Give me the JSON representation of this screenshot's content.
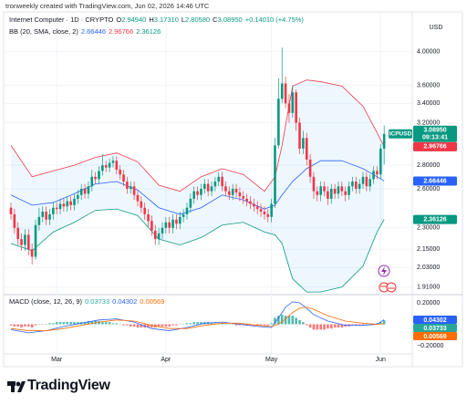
{
  "watermark": "tronweekly created with TradingView.com, Jun 02, 2026 14:46 UTC",
  "logo": "TradingView",
  "chart_data": [
    {
      "type": "candlestick",
      "symbol": "Internet Computer · 1D · CRYPTO",
      "ohlc_legend": [
        {
          "key": "O",
          "label": "2.94940"
        },
        {
          "key": "H",
          "label": "3.17310"
        },
        {
          "key": "L",
          "label": "2.80580"
        },
        {
          "key": "C",
          "label": "3.08950"
        }
      ],
      "change_label": "+0.14010 (+4.75%)",
      "currency": "USD",
      "last_price": {
        "symbol": "ICPUSD",
        "countdown": "09:13:41"
      },
      "categories": [
        null,
        null,
        null,
        null,
        null,
        null,
        null,
        null,
        null,
        null,
        null,
        null,
        null,
        "Mar",
        null,
        null,
        null,
        null,
        null,
        null,
        null,
        null,
        null,
        null,
        null,
        null,
        null,
        null,
        null,
        null,
        null,
        null,
        null,
        null,
        null,
        null,
        null,
        null,
        null,
        null,
        null,
        null,
        null,
        null,
        "Apr",
        null,
        null,
        null,
        null,
        null,
        null,
        null,
        null,
        null,
        null,
        null,
        null,
        null,
        null,
        null,
        null,
        null,
        null,
        null,
        null,
        null,
        null,
        null,
        null,
        null,
        null,
        null,
        null,
        null,
        "May",
        null,
        null,
        null,
        null,
        null,
        null,
        null,
        null,
        null,
        null,
        null,
        null,
        null,
        null,
        null,
        null,
        null,
        null,
        null,
        null,
        null,
        null,
        null,
        null,
        null,
        null,
        null,
        null,
        null,
        null,
        "Jun",
        null
      ],
      "open": [
        2.45,
        2.4,
        2.3,
        2.22,
        2.18,
        2.25,
        2.15,
        2.1,
        2.32,
        2.38,
        2.42,
        2.36,
        2.4,
        2.45,
        2.44,
        2.48,
        2.46,
        2.5,
        2.47,
        2.52,
        2.55,
        2.6,
        2.56,
        2.62,
        2.7,
        2.68,
        2.75,
        2.8,
        2.78,
        2.82,
        2.84,
        2.76,
        2.72,
        2.66,
        2.6,
        2.62,
        2.55,
        2.5,
        2.45,
        2.4,
        2.35,
        2.28,
        2.22,
        2.26,
        2.3,
        2.34,
        2.3,
        2.36,
        2.33,
        2.38,
        2.4,
        2.45,
        2.52,
        2.58,
        2.55,
        2.6,
        2.64,
        2.58,
        2.62,
        2.66,
        2.7,
        2.62,
        2.58,
        2.55,
        2.6,
        2.57,
        2.54,
        2.52,
        2.5,
        2.48,
        2.46,
        2.44,
        2.42,
        2.4,
        2.38,
        2.48,
        2.98,
        3.45,
        3.62,
        3.4,
        3.3,
        3.52,
        3.2,
        2.95,
        3.05,
        2.85,
        2.7,
        2.58,
        2.55,
        2.62,
        2.58,
        2.52,
        2.6,
        2.56,
        2.62,
        2.58,
        2.55,
        2.62,
        2.66,
        2.6,
        2.64,
        2.7,
        2.62,
        2.68,
        2.75,
        2.72,
        2.9494
      ],
      "high": [
        2.49,
        2.44,
        2.34,
        2.26,
        2.29,
        2.29,
        2.19,
        2.36,
        2.45,
        2.46,
        2.46,
        2.44,
        2.49,
        2.49,
        2.52,
        2.52,
        2.54,
        2.54,
        2.56,
        2.59,
        2.64,
        2.64,
        2.66,
        2.76,
        2.74,
        2.79,
        2.9,
        2.84,
        2.86,
        2.88,
        2.88,
        2.8,
        2.76,
        2.7,
        2.66,
        2.66,
        2.59,
        2.54,
        2.49,
        2.44,
        2.39,
        2.32,
        2.3,
        2.34,
        2.38,
        2.38,
        2.4,
        2.4,
        2.42,
        2.44,
        2.49,
        2.56,
        2.62,
        2.62,
        2.64,
        2.68,
        2.68,
        2.66,
        2.7,
        2.74,
        2.74,
        2.66,
        2.62,
        2.64,
        2.64,
        2.61,
        2.58,
        2.56,
        2.54,
        2.52,
        2.5,
        2.48,
        2.46,
        2.44,
        2.52,
        3.05,
        3.68,
        4.05,
        3.7,
        3.5,
        3.6,
        3.55,
        3.25,
        3.12,
        3.1,
        2.9,
        2.74,
        2.62,
        2.66,
        2.66,
        2.62,
        2.64,
        2.64,
        2.66,
        2.66,
        2.62,
        2.66,
        2.7,
        2.7,
        2.68,
        2.74,
        2.74,
        2.72,
        2.79,
        2.79,
        2.99,
        3.1731
      ],
      "low": [
        2.36,
        2.26,
        2.18,
        2.14,
        2.14,
        2.11,
        2.05,
        2.08,
        2.28,
        2.34,
        2.32,
        2.32,
        2.36,
        2.4,
        2.4,
        2.42,
        2.42,
        2.43,
        2.43,
        2.48,
        2.51,
        2.52,
        2.52,
        2.58,
        2.64,
        2.64,
        2.71,
        2.74,
        2.74,
        2.78,
        2.72,
        2.68,
        2.62,
        2.56,
        2.56,
        2.51,
        2.46,
        2.41,
        2.36,
        2.31,
        2.24,
        2.18,
        2.18,
        2.22,
        2.26,
        2.26,
        2.26,
        2.29,
        2.29,
        2.34,
        2.36,
        2.41,
        2.48,
        2.51,
        2.51,
        2.56,
        2.54,
        2.54,
        2.58,
        2.62,
        2.58,
        2.54,
        2.51,
        2.51,
        2.53,
        2.5,
        2.48,
        2.46,
        2.44,
        2.42,
        2.4,
        2.38,
        2.36,
        2.34,
        2.34,
        2.45,
        2.95,
        3.4,
        3.35,
        3.2,
        3.25,
        3.12,
        2.9,
        2.9,
        2.8,
        2.65,
        2.52,
        2.5,
        2.5,
        2.54,
        2.47,
        2.48,
        2.52,
        2.52,
        2.54,
        2.5,
        2.51,
        2.58,
        2.56,
        2.56,
        2.6,
        2.58,
        2.58,
        2.64,
        2.68,
        2.68,
        2.8058
      ],
      "close": [
        2.4,
        2.3,
        2.22,
        2.18,
        2.25,
        2.15,
        2.1,
        2.32,
        2.38,
        2.42,
        2.36,
        2.4,
        2.45,
        2.44,
        2.48,
        2.46,
        2.5,
        2.47,
        2.52,
        2.55,
        2.6,
        2.56,
        2.62,
        2.7,
        2.68,
        2.75,
        2.8,
        2.78,
        2.82,
        2.84,
        2.76,
        2.72,
        2.66,
        2.6,
        2.62,
        2.55,
        2.5,
        2.45,
        2.4,
        2.35,
        2.28,
        2.22,
        2.26,
        2.3,
        2.34,
        2.3,
        2.36,
        2.33,
        2.38,
        2.4,
        2.45,
        2.52,
        2.58,
        2.55,
        2.6,
        2.64,
        2.58,
        2.62,
        2.66,
        2.7,
        2.62,
        2.58,
        2.55,
        2.6,
        2.57,
        2.54,
        2.52,
        2.5,
        2.48,
        2.46,
        2.44,
        2.42,
        2.4,
        2.38,
        2.48,
        2.98,
        3.45,
        3.62,
        3.4,
        3.3,
        3.52,
        3.2,
        2.95,
        3.05,
        2.85,
        2.7,
        2.58,
        2.55,
        2.62,
        2.58,
        2.52,
        2.6,
        2.56,
        2.62,
        2.58,
        2.55,
        2.62,
        2.66,
        2.6,
        2.64,
        2.7,
        2.62,
        2.68,
        2.75,
        2.72,
        2.9494,
        3.0895
      ],
      "up_color": "#089981",
      "down_color": "#f23645",
      "ylim": [
        1.87,
        4.52
      ],
      "log_scale": true,
      "grid": true,
      "yticks": [
        {
          "value": 4.0,
          "label": "4.00000"
        },
        {
          "value": 3.6,
          "label": "3.60000"
        },
        {
          "value": 3.4,
          "label": "3.40000"
        },
        {
          "value": 3.2,
          "label": "3.20000"
        },
        {
          "value": 2.8,
          "label": "2.80000"
        },
        {
          "value": 2.6,
          "label": "2.60000"
        },
        {
          "value": 2.3,
          "label": "2.30000"
        },
        {
          "value": 2.15,
          "label": "2.15000"
        },
        {
          "value": 2.03,
          "label": "2.03000"
        },
        {
          "value": 1.91,
          "label": "1.91000"
        }
      ],
      "bb": {
        "name": "BB (20, SMA, close, 2)",
        "fill": "#2196f3",
        "x": [
          0,
          6,
          12,
          18,
          24,
          30,
          36,
          42,
          48,
          54,
          60,
          66,
          72,
          75,
          77,
          80,
          84,
          88,
          94,
          100,
          104,
          106
        ],
        "basis": {
          "color": "#2962ff",
          "value_label": "2.66446",
          "values": [
            2.55,
            2.47,
            2.49,
            2.56,
            2.64,
            2.66,
            2.59,
            2.45,
            2.4,
            2.45,
            2.55,
            2.51,
            2.44,
            2.47,
            2.55,
            2.66,
            2.77,
            2.84,
            2.84,
            2.77,
            2.7,
            2.66446
          ]
        },
        "upper": {
          "color": "#f23645",
          "value_label": "2.96766",
          "values": [
            2.98,
            2.7,
            2.75,
            2.8,
            2.87,
            2.91,
            2.83,
            2.63,
            2.58,
            2.7,
            2.77,
            2.72,
            2.58,
            2.7,
            2.98,
            3.59,
            3.66,
            3.64,
            3.59,
            3.37,
            3.1,
            2.96766
          ]
        },
        "lower": {
          "color": "#089981",
          "value_label": "2.36126",
          "values": [
            2.19,
            2.14,
            2.27,
            2.34,
            2.43,
            2.44,
            2.39,
            2.22,
            2.18,
            2.23,
            2.32,
            2.34,
            2.27,
            2.25,
            2.19,
            1.96,
            1.88,
            1.88,
            1.91,
            2.04,
            2.27,
            2.36126
          ]
        }
      }
    },
    {
      "type": "macd",
      "title": "MACD (close, 12, 26, 9)",
      "ylim": [
        -0.26,
        0.26
      ],
      "yticks": [
        {
          "value": 0.2,
          "label": "0.20000"
        },
        {
          "value": -0.2,
          "label": "−0.20000"
        }
      ],
      "histogram": {
        "color_positive": "#26a69a",
        "color_negative": "#ff5252",
        "value_label": "0.03733",
        "values": [
          -0.01,
          -0.02,
          -0.02,
          -0.03,
          -0.02,
          -0.02,
          -0.03,
          -0.01,
          0.0,
          0.0,
          0.0,
          0.01,
          0.01,
          0.02,
          0.02,
          0.02,
          0.02,
          0.02,
          0.02,
          0.02,
          0.02,
          0.02,
          0.03,
          0.03,
          0.03,
          0.03,
          0.02,
          0.02,
          0.02,
          0.01,
          0.01,
          0.0,
          -0.01,
          -0.01,
          -0.02,
          -0.02,
          -0.03,
          -0.03,
          -0.03,
          -0.03,
          -0.03,
          -0.03,
          -0.02,
          -0.02,
          -0.02,
          -0.02,
          -0.01,
          -0.01,
          0.0,
          0.0,
          0.01,
          0.01,
          0.02,
          0.02,
          0.02,
          0.02,
          0.02,
          0.01,
          0.01,
          0.01,
          0.01,
          0.0,
          0.0,
          0.0,
          -0.01,
          -0.01,
          -0.01,
          -0.01,
          -0.01,
          -0.01,
          -0.01,
          -0.01,
          -0.01,
          -0.01,
          0.01,
          0.06,
          0.08,
          0.09,
          0.08,
          0.08,
          0.08,
          0.06,
          0.04,
          0.02,
          -0.01,
          -0.03,
          -0.05,
          -0.05,
          -0.05,
          -0.05,
          -0.04,
          -0.04,
          -0.03,
          -0.03,
          -0.03,
          -0.02,
          -0.02,
          -0.01,
          -0.01,
          -0.01,
          -0.01,
          0.0,
          0.0,
          0.0,
          0.01,
          0.02,
          0.03733
        ]
      },
      "macd": {
        "color": "#2962ff",
        "value_label": "0.04302",
        "x": [
          0,
          5,
          10,
          15,
          20,
          25,
          30,
          35,
          40,
          45,
          50,
          55,
          60,
          65,
          70,
          74,
          76,
          78,
          80,
          82,
          84,
          86,
          90,
          95,
          100,
          104,
          106
        ],
        "values": [
          -0.05,
          -0.08,
          -0.06,
          -0.02,
          0.01,
          0.04,
          0.05,
          0.02,
          -0.04,
          -0.06,
          -0.03,
          0.01,
          0.02,
          0.0,
          -0.02,
          -0.03,
          0.06,
          0.16,
          0.21,
          0.2,
          0.15,
          0.09,
          0.03,
          -0.01,
          -0.01,
          0.0,
          0.04302
        ]
      },
      "signal": {
        "color": "#ff6d00",
        "value_label": "0.00569",
        "x": [
          0,
          5,
          10,
          15,
          20,
          25,
          30,
          35,
          40,
          45,
          50,
          55,
          60,
          65,
          70,
          74,
          76,
          78,
          80,
          82,
          84,
          86,
          90,
          95,
          100,
          104,
          106
        ],
        "values": [
          -0.04,
          -0.06,
          -0.06,
          -0.04,
          -0.01,
          0.02,
          0.04,
          0.03,
          -0.01,
          -0.04,
          -0.04,
          -0.01,
          0.01,
          0.01,
          -0.01,
          -0.02,
          0.0,
          0.05,
          0.11,
          0.15,
          0.16,
          0.14,
          0.08,
          0.03,
          0.01,
          0.0,
          0.00569
        ]
      }
    }
  ]
}
